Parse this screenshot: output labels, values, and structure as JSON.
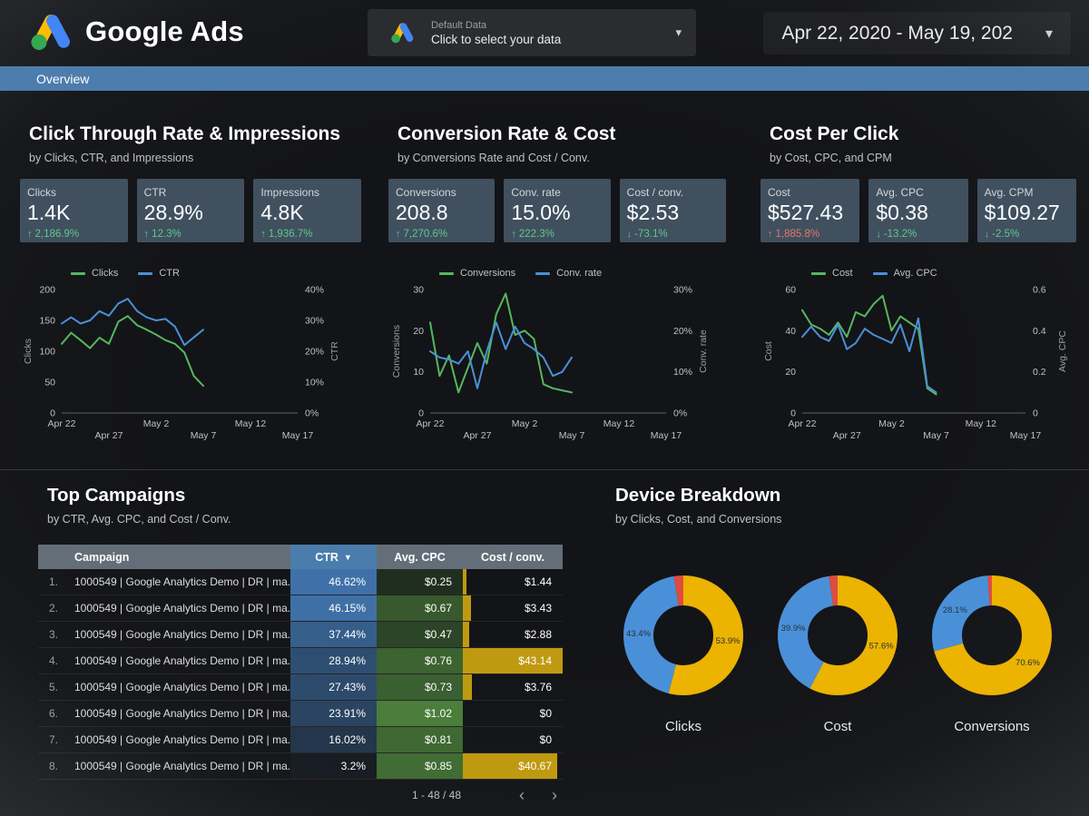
{
  "icons": {
    "caret_down": "▾",
    "sort_desc": "▼",
    "chevron_left": "‹",
    "chevron_right": "›",
    "arrow_up": "↑",
    "arrow_down": "↓"
  },
  "colors": {
    "navbar_blue": "#4d7dad",
    "chart_green": "#56b75f",
    "chart_blue": "#4a90d9",
    "delta_green": "#5fc98e",
    "delta_red": "#e8756a",
    "card_bg": "#40505f",
    "donut_yellow": "#ecb301",
    "donut_blue": "#4a90d9",
    "donut_red": "#e04b3f",
    "table_header_bg": "#646e78",
    "table_header_sorted_bg": "#4a7dab",
    "heat_blue_rgb": "63,113,168",
    "heat_green_rgb": "74,126,58",
    "cost_bar": "#bf9a10"
  },
  "header": {
    "app_title": "Google Ads",
    "data_selector": {
      "label": "Default Data",
      "hint": "Click to select your data"
    },
    "date_range": "Apr 22, 2020 - May 19, 202"
  },
  "nav": {
    "overview_tab": "Overview"
  },
  "sections": [
    {
      "title": "Click Through Rate & Impressions",
      "subtitle": "by Clicks, CTR, and Impressions",
      "cards": [
        {
          "label": "Clicks",
          "value": "1.4K",
          "delta": "2,186.9%",
          "direction": "up",
          "sentiment": "good"
        },
        {
          "label": "CTR",
          "value": "28.9%",
          "delta": "12.3%",
          "direction": "up",
          "sentiment": "good"
        },
        {
          "label": "Impressions",
          "value": "4.8K",
          "delta": "1,936.7%",
          "direction": "up",
          "sentiment": "good"
        }
      ]
    },
    {
      "title": "Conversion Rate & Cost",
      "subtitle": "by Conversions Rate and Cost / Conv.",
      "cards": [
        {
          "label": "Conversions",
          "value": "208.8",
          "delta": "7,270.6%",
          "direction": "up",
          "sentiment": "good"
        },
        {
          "label": "Conv. rate",
          "value": "15.0%",
          "delta": "222.3%",
          "direction": "up",
          "sentiment": "good"
        },
        {
          "label": "Cost / conv.",
          "value": "$2.53",
          "delta": "-73.1%",
          "direction": "down",
          "sentiment": "good"
        }
      ]
    },
    {
      "title": "Cost Per Click",
      "subtitle": "by Cost, CPC, and CPM",
      "cards": [
        {
          "label": "Cost",
          "value": "$527.43",
          "delta": "1,885.8%",
          "direction": "up",
          "sentiment": "bad"
        },
        {
          "label": "Avg. CPC",
          "value": "$0.38",
          "delta": "-13.2%",
          "direction": "down",
          "sentiment": "good"
        },
        {
          "label": "Avg. CPM",
          "value": "$109.27",
          "delta": "-2.5%",
          "direction": "down",
          "sentiment": "good"
        }
      ]
    }
  ],
  "campaigns": {
    "title": "Top Campaigns",
    "subtitle": "by CTR, Avg. CPC, and Cost / Conv.",
    "columns": [
      "Campaign",
      "CTR",
      "Avg. CPC",
      "Cost / conv."
    ],
    "sort_column": "CTR",
    "pagination": "1 - 48 / 48",
    "rows": [
      {
        "num": "1.",
        "campaign": "1000549 | Google Analytics Demo | DR | ma...",
        "ctr": "46.62%",
        "cpc": "$0.25",
        "cost_conv": "$1.44"
      },
      {
        "num": "2.",
        "campaign": "1000549 | Google Analytics Demo | DR | ma...",
        "ctr": "46.15%",
        "cpc": "$0.67",
        "cost_conv": "$3.43"
      },
      {
        "num": "3.",
        "campaign": "1000549 | Google Analytics Demo | DR | ma...",
        "ctr": "37.44%",
        "cpc": "$0.47",
        "cost_conv": "$2.88"
      },
      {
        "num": "4.",
        "campaign": "1000549 | Google Analytics Demo | DR | ma...",
        "ctr": "28.94%",
        "cpc": "$0.76",
        "cost_conv": "$43.14"
      },
      {
        "num": "5.",
        "campaign": "1000549 | Google Analytics Demo | DR | ma...",
        "ctr": "27.43%",
        "cpc": "$0.73",
        "cost_conv": "$3.76"
      },
      {
        "num": "6.",
        "campaign": "1000549 | Google Analytics Demo | DR | ma...",
        "ctr": "23.91%",
        "cpc": "$1.02",
        "cost_conv": "$0"
      },
      {
        "num": "7.",
        "campaign": "1000549 | Google Analytics Demo | DR | ma...",
        "ctr": "16.02%",
        "cpc": "$0.81",
        "cost_conv": "$0"
      },
      {
        "num": "8.",
        "campaign": "1000549 | Google Analytics Demo | DR | ma...",
        "ctr": "3.2%",
        "cpc": "$0.85",
        "cost_conv": "$40.67"
      }
    ]
  },
  "devices": {
    "title": "Device Breakdown",
    "subtitle": "by Clicks, Cost, and Conversions"
  },
  "chart_data": [
    {
      "type": "line",
      "name": "clicks-and-ctr",
      "x": {
        "labels": [
          "Apr 22",
          "Apr 27",
          "May 2",
          "May 7",
          "May 12",
          "May 17"
        ],
        "positions": [
          0,
          5,
          10,
          15,
          20,
          25
        ],
        "domain": 25
      },
      "left_axis": {
        "title": "Clicks",
        "max": 200,
        "ticks": [
          [
            "0",
            0
          ],
          [
            "50",
            50
          ],
          [
            "100",
            100
          ],
          [
            "150",
            150
          ],
          [
            "200",
            200
          ]
        ]
      },
      "right_axis": {
        "title": "CTR",
        "max": 40,
        "ticks": [
          [
            "0%",
            0
          ],
          [
            "10%",
            10
          ],
          [
            "20%",
            20
          ],
          [
            "30%",
            30
          ],
          [
            "40%",
            40
          ]
        ]
      },
      "series": [
        {
          "name": "Clicks",
          "axis": "left",
          "color_key": "chart_green",
          "values": [
            112,
            130,
            118,
            105,
            122,
            112,
            148,
            157,
            142,
            135,
            127,
            118,
            112,
            98,
            60,
            44
          ]
        },
        {
          "name": "CTR",
          "axis": "right",
          "color_key": "chart_blue",
          "values": [
            29,
            31,
            29,
            30,
            33,
            31.5,
            35.5,
            37,
            33,
            31,
            30,
            30.5,
            28,
            22,
            24.5,
            27
          ]
        }
      ]
    },
    {
      "type": "line",
      "name": "conversions-and-rate",
      "x": {
        "labels": [
          "Apr 22",
          "Apr 27",
          "May 2",
          "May 7",
          "May 12",
          "May 17"
        ],
        "positions": [
          0,
          5,
          10,
          15,
          20,
          25
        ],
        "domain": 25
      },
      "left_axis": {
        "title": "Conversions",
        "max": 30,
        "ticks": [
          [
            "0",
            0
          ],
          [
            "10",
            10
          ],
          [
            "20",
            20
          ],
          [
            "30",
            30
          ]
        ]
      },
      "right_axis": {
        "title": "Conv. rate",
        "max": 30,
        "ticks": [
          [
            "0%",
            0
          ],
          [
            "10%",
            10
          ],
          [
            "20%",
            20
          ],
          [
            "30%",
            30
          ]
        ]
      },
      "series": [
        {
          "name": "Conversions",
          "axis": "left",
          "color_key": "chart_green",
          "values": [
            22,
            9,
            14,
            5,
            11,
            17,
            12,
            24,
            29,
            19,
            20,
            18,
            7,
            6,
            5.5,
            5
          ]
        },
        {
          "name": "Conv. rate",
          "axis": "right",
          "color_key": "chart_blue",
          "values": [
            15,
            13.5,
            13,
            12,
            15,
            6,
            15,
            22,
            15.5,
            21,
            17,
            15.5,
            13.5,
            9,
            10,
            13.5
          ]
        }
      ]
    },
    {
      "type": "line",
      "name": "cost-and-cpc",
      "x": {
        "labels": [
          "Apr 22",
          "Apr 27",
          "May 2",
          "May 7",
          "May 12",
          "May 17"
        ],
        "positions": [
          0,
          5,
          10,
          15,
          20,
          25
        ],
        "domain": 25
      },
      "left_axis": {
        "title": "Cost",
        "max": 60,
        "ticks": [
          [
            "0",
            0
          ],
          [
            "20",
            20
          ],
          [
            "40",
            40
          ],
          [
            "60",
            60
          ]
        ]
      },
      "right_axis": {
        "title": "Avg. CPC",
        "max": 0.6,
        "ticks": [
          [
            "0",
            0
          ],
          [
            "0.2",
            0.2
          ],
          [
            "0.4",
            0.4
          ],
          [
            "0.6",
            0.6
          ]
        ]
      },
      "series": [
        {
          "name": "Cost",
          "axis": "left",
          "color_key": "chart_green",
          "values": [
            50,
            43,
            41,
            38,
            44,
            37,
            49,
            47,
            53,
            57,
            40,
            47,
            44,
            41,
            12,
            9
          ]
        },
        {
          "name": "Avg. CPC",
          "axis": "right",
          "color_key": "chart_blue",
          "values": [
            0.37,
            0.42,
            0.37,
            0.35,
            0.43,
            0.31,
            0.34,
            0.41,
            0.38,
            0.36,
            0.34,
            0.43,
            0.3,
            0.46,
            0.13,
            0.1
          ]
        }
      ]
    },
    {
      "type": "pie",
      "name": "device-breakdown-clicks",
      "title": "Clicks",
      "slices": [
        {
          "value": 53.9,
          "color_key": "donut_yellow",
          "label": "53.9%"
        },
        {
          "value": 43.4,
          "color_key": "donut_blue",
          "label": "43.4%"
        },
        {
          "value": 2.7,
          "color_key": "donut_red",
          "label": ""
        }
      ]
    },
    {
      "type": "pie",
      "name": "device-breakdown-cost",
      "title": "Cost",
      "slices": [
        {
          "value": 57.6,
          "color_key": "donut_yellow",
          "label": "57.6%"
        },
        {
          "value": 39.9,
          "color_key": "donut_blue",
          "label": "39.9%"
        },
        {
          "value": 2.5,
          "color_key": "donut_red",
          "label": ""
        }
      ]
    },
    {
      "type": "pie",
      "name": "device-breakdown-conversions",
      "title": "Conversions",
      "slices": [
        {
          "value": 70.6,
          "color_key": "donut_yellow",
          "label": "70.6%"
        },
        {
          "value": 28.1,
          "color_key": "donut_blue",
          "label": "28.1%"
        },
        {
          "value": 1.3,
          "color_key": "donut_red",
          "label": ""
        }
      ]
    }
  ]
}
